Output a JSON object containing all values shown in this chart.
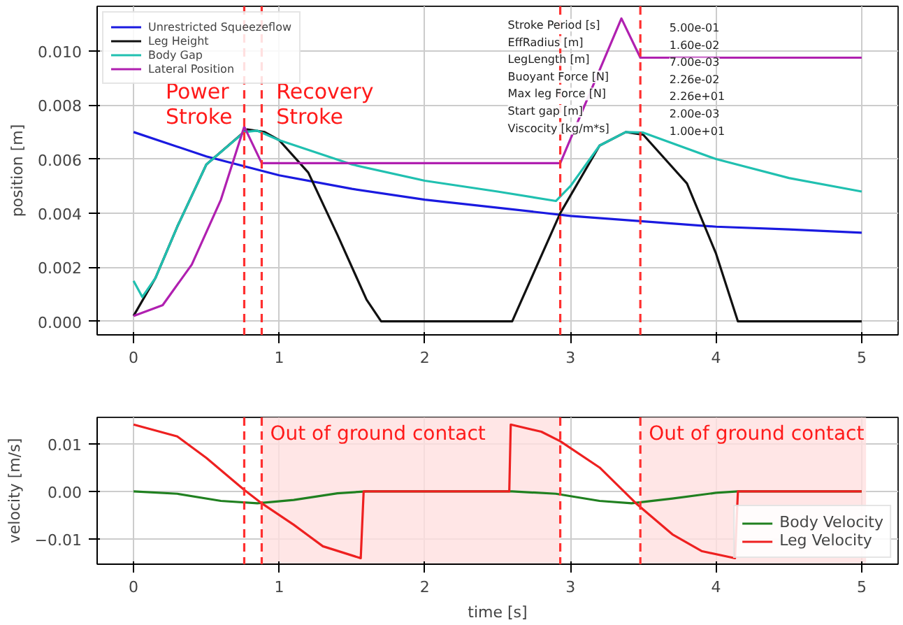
{
  "chart_data": [
    {
      "type": "line",
      "ylabel": "position [m]",
      "xlim": [
        -0.25,
        5.25
      ],
      "ylim": [
        -0.0005,
        0.01165
      ],
      "xticks": [
        0,
        1,
        2,
        3,
        4,
        5
      ],
      "yticks": [
        {
          "value": 0,
          "label": "0.000"
        },
        {
          "value": 0.002,
          "label": "0.002"
        },
        {
          "value": 0.004,
          "label": "0.004"
        },
        {
          "value": 0.006,
          "label": "0.006"
        },
        {
          "value": 0.008,
          "label": "0.008"
        },
        {
          "value": 0.01,
          "label": "0.010"
        }
      ],
      "grid": true,
      "legend": "top left",
      "series": [
        {
          "name": "Unrestricted Squeezeflow",
          "color": "#1a1ae0",
          "x": [
            0,
            0.5,
            1,
            1.5,
            2,
            2.5,
            3,
            3.5,
            4,
            4.5,
            5
          ],
          "values": [
            0.007,
            0.0061,
            0.0054,
            0.0049,
            0.0045,
            0.0042,
            0.0039,
            0.0037,
            0.0035,
            0.0034,
            0.00328
          ]
        },
        {
          "name": "Leg Height",
          "color": "#111111",
          "x": [
            0,
            0.15,
            0.3,
            0.5,
            0.78,
            0.9,
            1.0,
            1.2,
            1.4,
            1.6,
            1.7,
            2.6,
            2.93,
            3.2,
            3.38,
            3.5,
            3.8,
            4.0,
            4.15,
            5
          ],
          "values": [
            0.0002,
            0.0016,
            0.0035,
            0.0058,
            0.0071,
            0.007,
            0.0067,
            0.0055,
            0.0032,
            0.0008,
            0,
            0,
            0.004,
            0.0065,
            0.007,
            0.0069,
            0.0051,
            0.0025,
            0,
            0
          ]
        },
        {
          "name": "Body Gap",
          "color": "#20c0b0",
          "x": [
            0,
            0.06,
            0.15,
            0.3,
            0.5,
            0.76,
            0.85,
            1,
            1.5,
            2,
            2.5,
            2.9,
            3.0,
            3.2,
            3.38,
            3.5,
            4,
            4.5,
            5
          ],
          "values": [
            0.0015,
            0.0009,
            0.0016,
            0.0035,
            0.0058,
            0.007,
            0.00705,
            0.0067,
            0.0058,
            0.0052,
            0.0048,
            0.00445,
            0.005,
            0.0065,
            0.007,
            0.00698,
            0.006,
            0.0053,
            0.0048
          ]
        },
        {
          "name": "Lateral Position",
          "color": "#b020b0",
          "x": [
            0,
            0.2,
            0.4,
            0.6,
            0.76,
            0.88,
            2.93,
            3.35,
            3.48,
            5
          ],
          "values": [
            0.0002,
            0.0006,
            0.0021,
            0.0045,
            0.0072,
            0.00585,
            0.00585,
            0.0112,
            0.00975,
            0.00975
          ]
        }
      ],
      "ref_lines": [
        {
          "axis": "x",
          "value": 0.76,
          "color": "#ff3030",
          "line_style": "dashed"
        },
        {
          "axis": "x",
          "value": 0.88,
          "color": "#ff3030",
          "line_style": "dashed"
        },
        {
          "axis": "x",
          "value": 2.93,
          "color": "#ff3030",
          "line_style": "dashed"
        },
        {
          "axis": "x",
          "value": 3.48,
          "color": "#ff3030",
          "line_style": "dashed"
        }
      ],
      "annotations": [
        "Power\nStroke",
        "Recovery\nStroke",
        "Stroke Period [s] 5.00e-01",
        "EffRadius [m] 1.60e-02",
        "LegLength [m] 7.00e-03",
        "Buoyant Force [N] 2.26e-02",
        "Max leg Force [N] 2.26e+01",
        "Start gap [m] 2.00e-03",
        "Viscocity [kg/m*s] 1.00e+01"
      ]
    },
    {
      "type": "line",
      "xlabel": "time [s]",
      "ylabel": "velocity [m/s]",
      "xlim": [
        -0.25,
        5.25
      ],
      "ylim": [
        -0.01525,
        0.0155
      ],
      "xticks": [
        0,
        1,
        2,
        3,
        4,
        5
      ],
      "yticks": [
        {
          "value": -0.01,
          "label": "−0.01"
        },
        {
          "value": 0,
          "label": "0.00"
        },
        {
          "value": 0.01,
          "label": "0.01"
        }
      ],
      "grid": true,
      "legend": "bottom right",
      "series": [
        {
          "name": "Body Velocity",
          "color": "#208020",
          "x": [
            0,
            0.3,
            0.6,
            0.85,
            1.1,
            1.4,
            1.6,
            2.6,
            2.9,
            3.2,
            3.42,
            3.7,
            4.0,
            4.15,
            5
          ],
          "values": [
            0,
            -0.0005,
            -0.002,
            -0.0025,
            -0.0018,
            -0.0004,
            0,
            0,
            -0.0005,
            -0.002,
            -0.0025,
            -0.0015,
            -0.0003,
            0,
            0
          ]
        },
        {
          "name": "Leg Velocity",
          "color": "#ee2020",
          "x": [
            0,
            0.3,
            0.5,
            0.76,
            0.88,
            1.1,
            1.3,
            1.56,
            1.58,
            2.58,
            2.59,
            2.8,
            2.93,
            3.2,
            3.45,
            3.7,
            3.9,
            4.13,
            4.15,
            5
          ],
          "values": [
            0.014,
            0.0115,
            0.007,
            0.0003,
            -0.0025,
            -0.007,
            -0.0115,
            -0.014,
            0,
            0,
            0.014,
            0.0125,
            0.0105,
            0.005,
            -0.0025,
            -0.009,
            -0.0125,
            -0.014,
            0,
            0
          ]
        }
      ],
      "ref_lines": [
        {
          "axis": "x",
          "value": 0.76,
          "color": "#ff3030",
          "line_style": "dashed"
        },
        {
          "axis": "x",
          "value": 0.88,
          "color": "#ff3030",
          "line_style": "dashed"
        },
        {
          "axis": "x",
          "value": 2.93,
          "color": "#ff3030",
          "line_style": "dashed"
        },
        {
          "axis": "x",
          "value": 3.48,
          "color": "#ff3030",
          "line_style": "dashed"
        }
      ],
      "bands": [
        {
          "axis": "x",
          "from": 0.88,
          "to": 2.93,
          "label": "Out of ground contact",
          "color": "#ffe0e0"
        },
        {
          "axis": "x",
          "from": 3.48,
          "to": 5.03,
          "label": "Out of ground contact",
          "color": "#ffe0e0"
        }
      ]
    }
  ]
}
